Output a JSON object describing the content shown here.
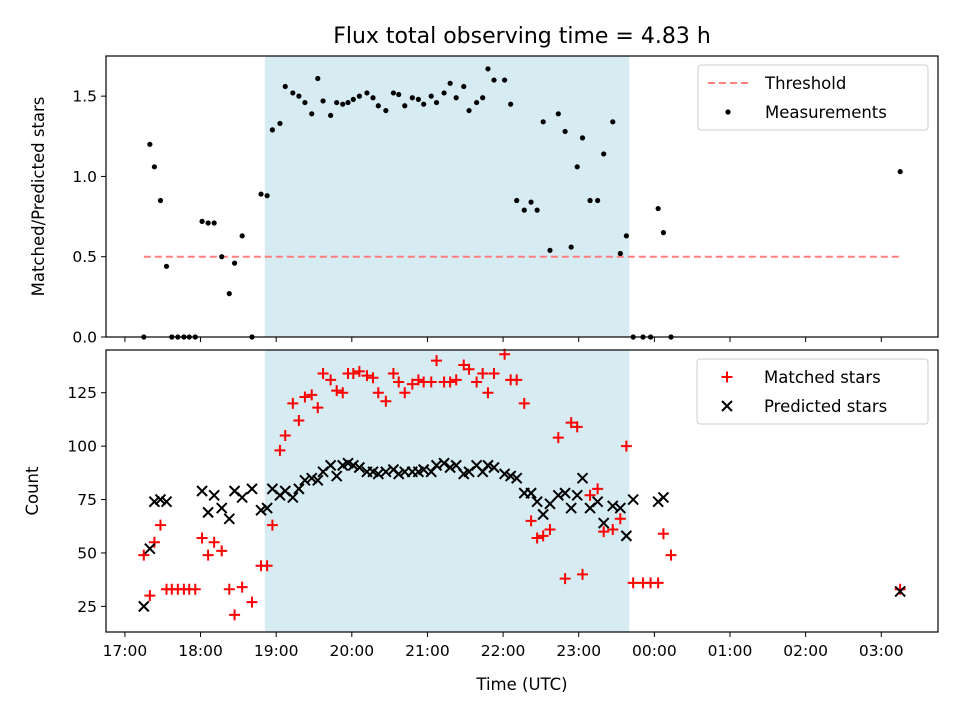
{
  "figure_title": "Flux total observing time = 4.83 h",
  "colors": {
    "shade": "#add8e6",
    "threshold": "#ff7f7f",
    "matched": "#ff0000",
    "predicted": "#000000",
    "measurement": "#000000"
  },
  "chart_data": [
    {
      "type": "scatter",
      "ylabel": "Matched/Predicted stars",
      "xlim": [
        16.75,
        27.75
      ],
      "ylim": [
        0,
        1.75
      ],
      "yticks": [
        0.0,
        0.5,
        1.0,
        1.5
      ],
      "ytick_labels": [
        "0.0",
        "0.5",
        "1.0",
        "1.5"
      ],
      "shaded_span": [
        18.85,
        23.67
      ],
      "legend": {
        "location": "top-right",
        "entries": [
          "Threshold",
          "Measurements"
        ]
      },
      "threshold": {
        "name": "Threshold",
        "y": 0.5,
        "x_start": 17.25,
        "x_end": 27.25,
        "style": "dashed"
      },
      "measurements": {
        "name": "Measurements",
        "x": [
          17.25,
          17.33,
          17.39,
          17.47,
          17.55,
          17.62,
          17.7,
          17.78,
          17.85,
          17.93,
          18.02,
          18.1,
          18.18,
          18.28,
          18.38,
          18.45,
          18.55,
          18.68,
          18.8,
          18.88,
          18.95,
          19.05,
          19.12,
          19.22,
          19.3,
          19.38,
          19.47,
          19.55,
          19.62,
          19.72,
          19.8,
          19.88,
          19.95,
          20.02,
          20.1,
          20.2,
          20.28,
          20.35,
          20.45,
          20.55,
          20.62,
          20.7,
          20.8,
          20.88,
          20.95,
          21.05,
          21.12,
          21.22,
          21.3,
          21.38,
          21.48,
          21.55,
          21.65,
          21.73,
          21.8,
          21.88,
          22.02,
          22.1,
          22.18,
          22.28,
          22.37,
          22.45,
          22.53,
          22.62,
          22.73,
          22.82,
          22.9,
          22.98,
          23.05,
          23.15,
          23.25,
          23.33,
          23.45,
          23.55,
          23.63,
          23.72,
          23.85,
          23.95,
          24.05,
          24.12,
          24.22,
          27.25
        ],
        "y": [
          0,
          1.2,
          1.06,
          0.85,
          0.44,
          0,
          0,
          0,
          0,
          0,
          0.72,
          0.71,
          0.71,
          0.5,
          0.27,
          0.46,
          0.63,
          0,
          0.89,
          0.88,
          1.29,
          1.33,
          1.56,
          1.52,
          1.5,
          1.46,
          1.39,
          1.61,
          1.47,
          1.38,
          1.46,
          1.45,
          1.46,
          1.48,
          1.5,
          1.52,
          1.49,
          1.44,
          1.41,
          1.52,
          1.51,
          1.44,
          1.49,
          1.48,
          1.45,
          1.5,
          1.46,
          1.52,
          1.58,
          1.49,
          1.56,
          1.41,
          1.46,
          1.49,
          1.67,
          1.6,
          1.6,
          1.45,
          0.85,
          0.79,
          0.84,
          0.79,
          1.34,
          0.54,
          1.39,
          1.28,
          0.56,
          1.06,
          1.24,
          0.85,
          0.85,
          1.14,
          1.34,
          0.52,
          0.63,
          0,
          0,
          0,
          0.8,
          0.65,
          0,
          1.03
        ]
      }
    },
    {
      "type": "scatter",
      "ylabel": "Count",
      "xlabel": "Time (UTC)",
      "xlim": [
        16.75,
        27.75
      ],
      "ylim": [
        13,
        145
      ],
      "yticks": [
        25,
        50,
        75,
        100,
        125
      ],
      "ytick_labels": [
        "25",
        "50",
        "75",
        "100",
        "125"
      ],
      "xticks": [
        17,
        18,
        19,
        20,
        21,
        22,
        23,
        24,
        25,
        26,
        27
      ],
      "xtick_labels": [
        "17:00",
        "18:00",
        "19:00",
        "20:00",
        "21:00",
        "22:00",
        "23:00",
        "00:00",
        "01:00",
        "02:00",
        "03:00"
      ],
      "shaded_span": [
        18.85,
        23.67
      ],
      "legend": {
        "location": "top-right",
        "entries": [
          "Matched stars",
          "Predicted stars"
        ]
      },
      "series": [
        {
          "name": "Matched stars",
          "marker": "+",
          "x": [
            17.25,
            17.33,
            17.39,
            17.47,
            17.55,
            17.62,
            17.7,
            17.78,
            17.85,
            17.93,
            18.02,
            18.1,
            18.18,
            18.28,
            18.38,
            18.45,
            18.55,
            18.68,
            18.8,
            18.88,
            18.95,
            19.05,
            19.12,
            19.22,
            19.3,
            19.38,
            19.47,
            19.55,
            19.62,
            19.72,
            19.8,
            19.88,
            19.95,
            20.02,
            20.1,
            20.2,
            20.28,
            20.35,
            20.45,
            20.55,
            20.62,
            20.7,
            20.8,
            20.88,
            20.95,
            21.05,
            21.12,
            21.22,
            21.3,
            21.38,
            21.48,
            21.55,
            21.65,
            21.73,
            21.8,
            21.88,
            22.02,
            22.1,
            22.18,
            22.28,
            22.37,
            22.45,
            22.53,
            22.62,
            22.73,
            22.82,
            22.9,
            22.98,
            23.05,
            23.15,
            23.25,
            23.33,
            23.45,
            23.55,
            23.63,
            23.72,
            23.85,
            23.95,
            24.05,
            24.12,
            24.22,
            27.25
          ],
          "y": [
            49,
            30,
            55,
            63,
            33,
            33,
            33,
            33,
            33,
            33,
            57,
            49,
            55,
            51,
            33,
            21,
            34,
            27,
            44,
            44,
            63,
            98,
            105,
            120,
            112,
            123,
            124,
            118,
            134,
            131,
            126,
            125,
            134,
            134,
            135,
            133,
            132,
            125,
            121,
            134,
            130,
            125,
            129,
            131,
            130,
            130,
            140,
            130,
            130,
            131,
            138,
            136,
            130,
            134,
            125,
            134,
            143,
            131,
            131,
            120,
            65,
            57,
            58,
            61,
            104,
            38,
            111,
            109,
            40,
            77,
            80,
            60,
            61,
            66,
            100,
            36,
            36,
            36,
            36,
            59,
            49,
            33
          ]
        },
        {
          "name": "Predicted stars",
          "marker": "x",
          "x": [
            17.25,
            17.33,
            17.39,
            17.47,
            17.55,
            18.02,
            18.1,
            18.18,
            18.28,
            18.38,
            18.45,
            18.55,
            18.68,
            18.8,
            18.88,
            18.95,
            19.05,
            19.12,
            19.22,
            19.3,
            19.38,
            19.47,
            19.55,
            19.62,
            19.72,
            19.8,
            19.88,
            19.95,
            20.02,
            20.1,
            20.2,
            20.28,
            20.35,
            20.45,
            20.55,
            20.62,
            20.7,
            20.8,
            20.88,
            20.95,
            21.05,
            21.12,
            21.22,
            21.3,
            21.38,
            21.48,
            21.55,
            21.65,
            21.73,
            21.8,
            21.88,
            22.02,
            22.1,
            22.18,
            22.28,
            22.37,
            22.45,
            22.53,
            22.62,
            22.73,
            22.82,
            22.9,
            22.98,
            23.05,
            23.15,
            23.25,
            23.33,
            23.45,
            23.55,
            23.63,
            23.72,
            24.05,
            24.12,
            27.25
          ],
          "y": [
            25,
            52,
            74,
            75,
            74,
            79,
            69,
            77,
            71,
            66,
            79,
            76,
            80,
            70,
            71,
            80,
            77,
            79,
            76,
            80,
            84,
            85,
            84,
            88,
            91,
            86,
            91,
            92,
            91,
            90,
            88,
            88,
            87,
            88,
            89,
            87,
            88,
            88,
            88,
            89,
            88,
            91,
            92,
            90,
            91,
            87,
            88,
            91,
            88,
            91,
            90,
            87,
            86,
            85,
            78,
            78,
            74,
            68,
            73,
            77,
            78,
            71,
            77,
            85,
            71,
            74,
            64,
            72,
            71,
            58,
            75,
            74,
            76,
            32
          ]
        }
      ]
    }
  ]
}
